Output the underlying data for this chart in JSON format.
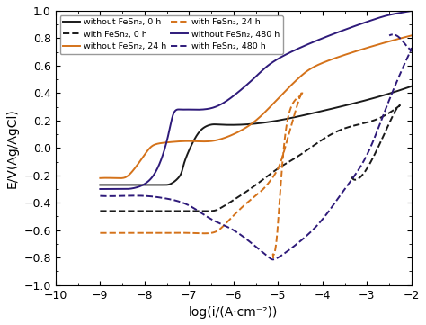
{
  "title": "",
  "xlabel": "log(i/(A·cm⁻²))",
  "ylabel": "E/V(Ag/AgCl)",
  "xlim": [
    -10,
    -2
  ],
  "ylim": [
    -1.0,
    1.0
  ],
  "colors": {
    "black": "#1a1a1a",
    "orange": "#d4721a",
    "purple": "#2e1a7a"
  },
  "legend_entries": [
    {
      "label": "without FeSn₂, 0 h",
      "color": "#1a1a1a",
      "ls": "-"
    },
    {
      "label": "with FeSn₂, 0 h",
      "color": "#1a1a1a",
      "ls": "--"
    },
    {
      "label": "without FeSn₂, 24 h",
      "color": "#d4721a",
      "ls": "-"
    },
    {
      "label": "with FeSn₂, 24 h",
      "color": "#d4721a",
      "ls": "--"
    },
    {
      "label": "without FeSn₂, 480 h",
      "color": "#2e1a7a",
      "ls": "-"
    },
    {
      "label": "with FeSn₂, 480 h",
      "color": "#2e1a7a",
      "ls": "--"
    }
  ],
  "background": "#ffffff",
  "tick_fontsize": 9,
  "label_fontsize": 10
}
